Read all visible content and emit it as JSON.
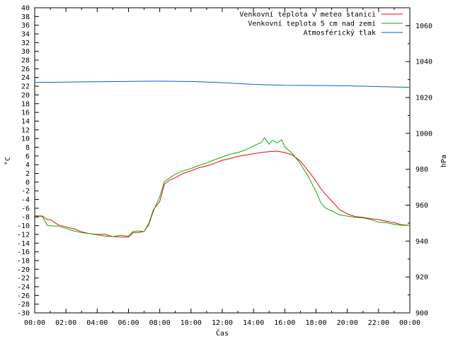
{
  "chart_data": {
    "type": "line",
    "xlabel": "Čas",
    "ylabel_left": "°C",
    "ylabel_right": "hPa",
    "x_ticks": [
      "00:00",
      "02:00",
      "04:00",
      "06:00",
      "08:00",
      "10:00",
      "12:00",
      "14:00",
      "16:00",
      "18:00",
      "20:00",
      "22:00",
      "00:00"
    ],
    "xlim_hours": [
      0,
      24
    ],
    "ylim_left": [
      -30,
      40
    ],
    "yticks_left": [
      -30,
      -28,
      -26,
      -24,
      -22,
      -20,
      -18,
      -16,
      -14,
      -12,
      -10,
      -8,
      -6,
      -4,
      -2,
      0,
      2,
      4,
      6,
      8,
      10,
      12,
      14,
      16,
      18,
      20,
      22,
      24,
      26,
      28,
      30,
      32,
      34,
      36,
      38,
      40
    ],
    "ylim_right": [
      900,
      1070
    ],
    "yticks_right": [
      900,
      920,
      940,
      960,
      980,
      1000,
      1020,
      1040,
      1060
    ],
    "legend_position": "top-right",
    "series": [
      {
        "name": "Venkovní teplota v meteo stanici",
        "color": "#ff0000",
        "axis": "left",
        "x": [
          0,
          0.5,
          0.8,
          1,
          1.5,
          2,
          2.5,
          3,
          3.5,
          4,
          4.5,
          5,
          5.5,
          6,
          6.3,
          6.6,
          7,
          7.3,
          7.6,
          8,
          8.3,
          8.6,
          9,
          9.5,
          10,
          10.5,
          11,
          11.5,
          12,
          12.5,
          13,
          13.5,
          14,
          14.5,
          15,
          15.5,
          16,
          16.5,
          17,
          17.5,
          18,
          18.3,
          18.6,
          19,
          19.5,
          20,
          20.5,
          21,
          21.5,
          22,
          22.5,
          23,
          23.5,
          24
        ],
        "y": [
          -7.7,
          -7.8,
          -8.6,
          -8.6,
          -9.8,
          -10.3,
          -10.7,
          -11.4,
          -11.8,
          -12.0,
          -12.0,
          -12.5,
          -12.6,
          -12.6,
          -11.6,
          -11.6,
          -11.3,
          -9.5,
          -6.3,
          -4.4,
          -0.5,
          0.4,
          1.0,
          2.0,
          2.6,
          3.3,
          3.7,
          4.3,
          5.0,
          5.4,
          5.9,
          6.2,
          6.5,
          6.8,
          7.0,
          7.1,
          6.8,
          6.2,
          4.8,
          2.6,
          0.2,
          -1.5,
          -2.8,
          -4.3,
          -6.3,
          -7.3,
          -7.9,
          -8.1,
          -8.4,
          -8.6,
          -9.0,
          -9.3,
          -9.8,
          -9.9
        ]
      },
      {
        "name": "Venkovní teplota 5 cm nad zemí",
        "color": "#00b000",
        "axis": "left",
        "x": [
          0,
          0.5,
          0.8,
          1,
          1.5,
          2,
          2.5,
          3,
          3.5,
          4,
          4.5,
          5,
          5.5,
          6,
          6.3,
          6.6,
          7,
          7.3,
          7.6,
          8,
          8.3,
          8.6,
          9,
          9.5,
          10,
          10.5,
          11,
          11.5,
          12,
          12.5,
          13,
          13.5,
          14,
          14.5,
          14.7,
          15,
          15.2,
          15.5,
          15.8,
          16,
          16.5,
          17,
          17.5,
          18,
          18.3,
          18.6,
          19,
          19.5,
          20,
          20.5,
          21,
          21.5,
          22,
          22.5,
          23,
          23.5,
          24
        ],
        "y": [
          -7.8,
          -7.9,
          -9.9,
          -10.0,
          -10.1,
          -10.6,
          -11.2,
          -11.6,
          -11.8,
          -12.1,
          -12.4,
          -12.5,
          -12.2,
          -12.4,
          -11.3,
          -11.2,
          -11.3,
          -9.8,
          -6.6,
          -3.3,
          0.1,
          0.9,
          1.8,
          2.6,
          3.1,
          3.8,
          4.4,
          5.1,
          5.8,
          6.4,
          6.8,
          7.4,
          8.3,
          9.1,
          10.2,
          8.7,
          9.6,
          9.0,
          9.7,
          8.1,
          6.5,
          4.2,
          1.3,
          -2.2,
          -4.7,
          -5.9,
          -6.6,
          -7.5,
          -7.8,
          -8.1,
          -8.2,
          -8.6,
          -9.2,
          -9.3,
          -9.7,
          -9.9,
          -9.9
        ]
      },
      {
        "name": "Atmosférický tlak",
        "color": "#0060d0",
        "axis": "right",
        "x": [
          0,
          2,
          4,
          6,
          8,
          10,
          12,
          14,
          16,
          18,
          20,
          22,
          24
        ],
        "y": [
          1028.4,
          1028.6,
          1028.8,
          1029.0,
          1029.1,
          1028.9,
          1028.3,
          1027.3,
          1026.8,
          1026.7,
          1026.5,
          1026.1,
          1025.7
        ]
      }
    ]
  }
}
